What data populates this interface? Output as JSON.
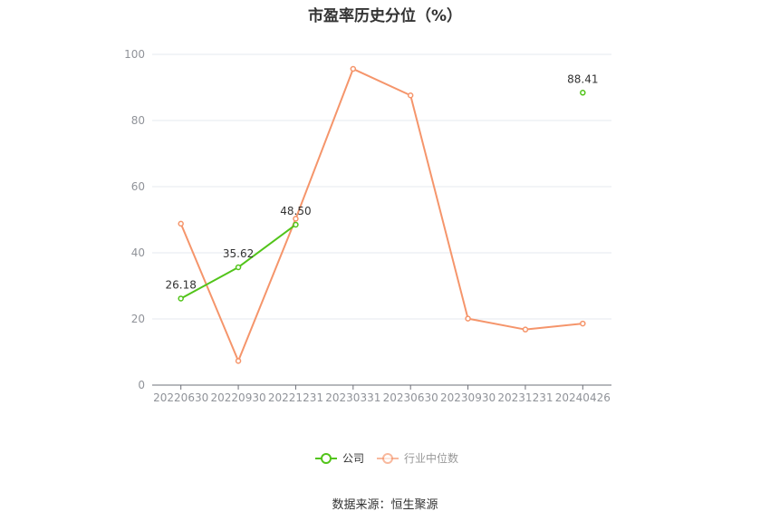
{
  "chart_data": {
    "type": "line",
    "title": "市盈率历史分位（%）",
    "categories": [
      "20220630",
      "20220930",
      "20221231",
      "20230331",
      "20230630",
      "20230930",
      "20231231",
      "20240426"
    ],
    "ylim": [
      0,
      100
    ],
    "yticks": [
      0,
      20,
      40,
      60,
      80,
      100
    ],
    "grid": true,
    "legend_position": "bottom",
    "series": [
      {
        "name": "公司",
        "color": "#52c41a",
        "values": [
          26.18,
          35.62,
          48.5,
          null,
          null,
          null,
          null,
          88.41
        ],
        "labels": [
          "26.18",
          "35.62",
          "48.50",
          null,
          null,
          null,
          null,
          "88.41"
        ]
      },
      {
        "name": "行业中位数",
        "color": "#f5956b",
        "values": [
          48.8,
          7.3,
          50.3,
          95.6,
          87.6,
          20.1,
          16.8,
          18.6
        ],
        "labels": [
          null,
          null,
          null,
          null,
          null,
          null,
          null,
          null
        ]
      }
    ]
  },
  "footer": {
    "source": "数据来源：恒生聚源"
  }
}
